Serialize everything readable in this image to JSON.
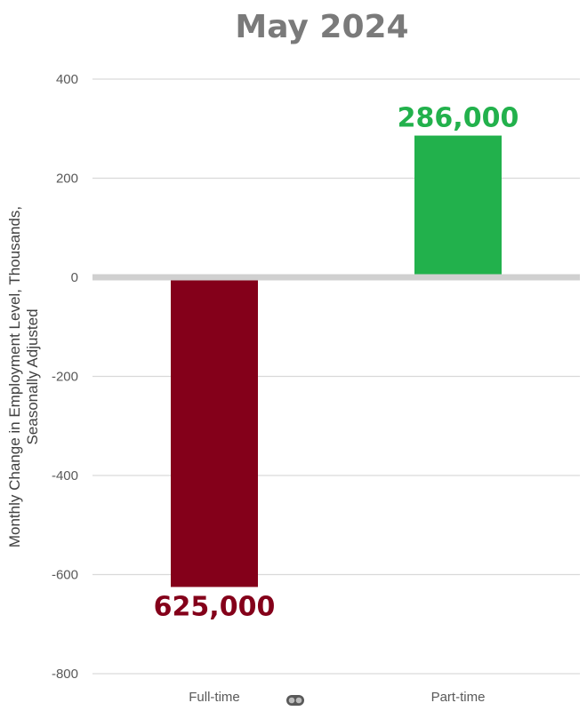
{
  "chart_data": {
    "type": "bar",
    "title": "May 2024",
    "ylabel_lines": [
      "Monthly Change in Employment Level, Thousands,",
      "Seasonally Adjusted"
    ],
    "xlabel": "",
    "categories": [
      "Full-time",
      "Part-time"
    ],
    "values": [
      -625,
      286
    ],
    "data_labels": [
      "625,000",
      "286,000"
    ],
    "colors": [
      "#84001a",
      "#22b14c"
    ],
    "ylim": [
      -800,
      400
    ],
    "yticks": [
      -800,
      -600,
      -400,
      -200,
      0,
      200,
      400
    ],
    "grid": true,
    "legend": "none"
  },
  "colors": {
    "title": "#7a7a7a",
    "grid": "#d9d9d9",
    "tick_text": "#595959"
  },
  "icons": {
    "chart_marker": "toggle-icon"
  }
}
